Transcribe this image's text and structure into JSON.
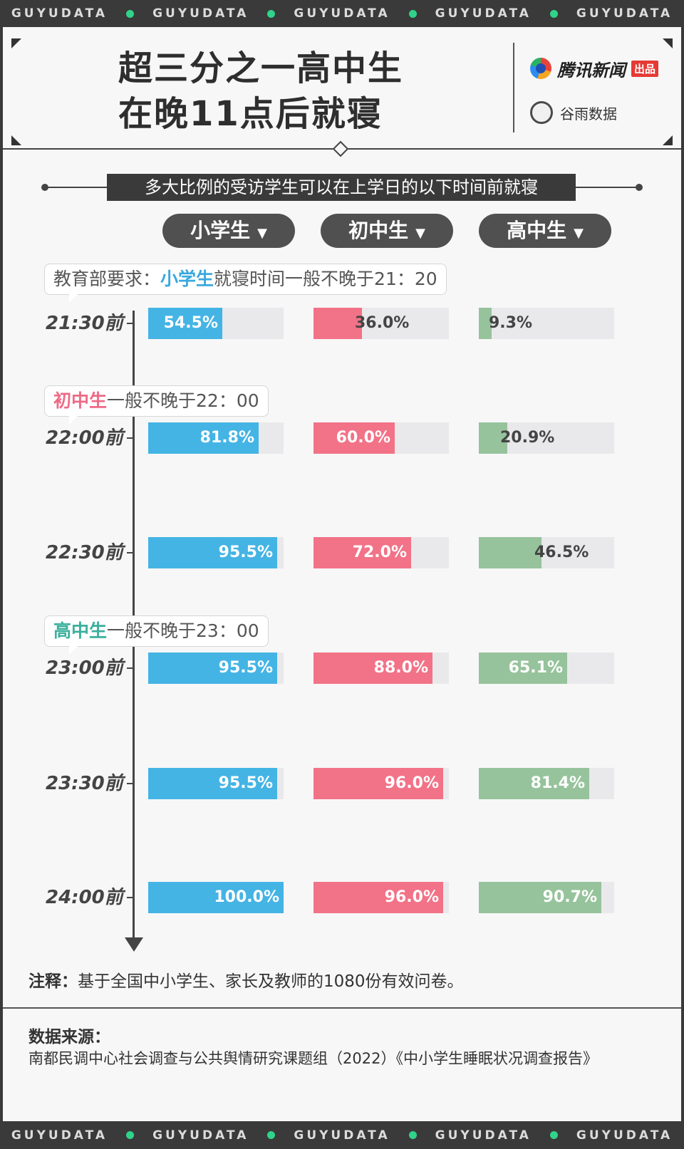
{
  "brand_band": "GUYUDATA",
  "header": {
    "title_line1": "超三分之一高中生",
    "title_line2": "在晚11点后就寝",
    "brand1_name": "腾讯新闻",
    "brand1_tag": "出品",
    "brand2_name": "谷雨数据"
  },
  "subtitle": "多大比例的受访学生可以在上学日的以下时间前就寝",
  "callouts": {
    "c1_prefix": "教育部要求：",
    "c1_highlight": "小学生",
    "c1_suffix": "就寝时间一般不晚于21：20",
    "c2_highlight": "初中生",
    "c2_suffix": "一般不晚于22：00",
    "c3_highlight": "高中生",
    "c3_suffix": "一般不晚于23：00"
  },
  "colors": {
    "primary": "#44b4e4",
    "middle": "#f27287",
    "high": "#96c39b"
  },
  "chart_data": {
    "type": "bar",
    "title": "多大比例的受访学生可以在上学日的以下时间前就寝",
    "categories": [
      "21:30前",
      "22:00前",
      "22:30前",
      "23:00前",
      "23:30前",
      "24:00前"
    ],
    "series": [
      {
        "name": "小学生",
        "values": [
          54.5,
          81.8,
          95.5,
          95.5,
          95.5,
          100.0
        ],
        "labels": [
          "54.5%",
          "81.8%",
          "95.5%",
          "95.5%",
          "95.5%",
          "100.0%"
        ]
      },
      {
        "name": "初中生",
        "values": [
          36.0,
          60.0,
          72.0,
          88.0,
          96.0,
          96.0
        ],
        "labels": [
          "36.0%",
          "60.0%",
          "72.0%",
          "88.0%",
          "96.0%",
          "96.0%"
        ]
      },
      {
        "name": "高中生",
        "values": [
          9.3,
          20.9,
          46.5,
          65.1,
          81.4,
          90.7
        ],
        "labels": [
          "9.3%",
          "20.9%",
          "46.5%",
          "65.1%",
          "81.4%",
          "90.7%"
        ]
      }
    ],
    "ylim": [
      0,
      100
    ]
  },
  "footer": {
    "note_label": "注释：",
    "note_text": "基于全国中小学生、家长及教师的1080份有效问卷。",
    "source_label": "数据来源：",
    "source_text": "南都民调中心社会调查与公共舆情研究课题组（2022）《中小学生睡眠状况调查报告》"
  }
}
